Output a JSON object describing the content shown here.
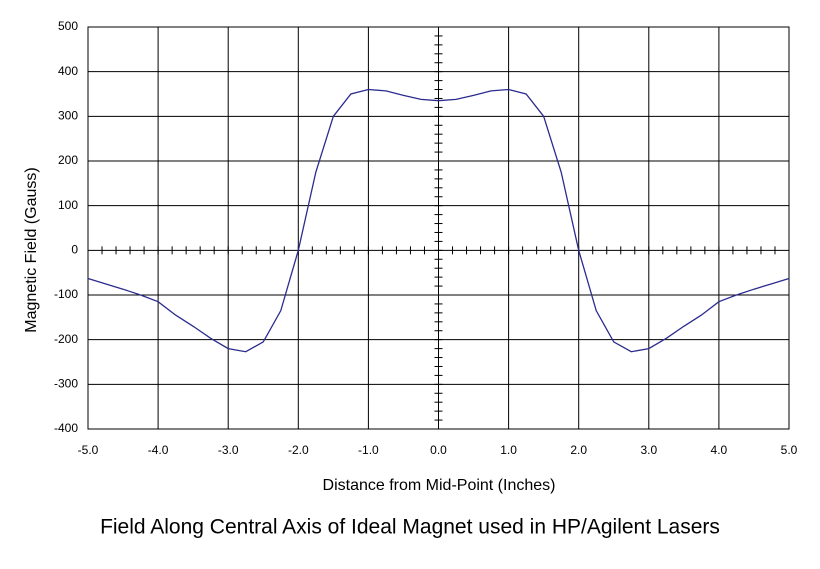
{
  "chart_data": {
    "type": "line",
    "title": "Field Along Central Axis of Ideal Magnet used in HP/Agilent Lasers",
    "x_label": "Distance from Mid-Point (Inches)",
    "y_label": "Magnetic Field (Gauss)",
    "x": [
      -5,
      -4.75,
      -4.5,
      -4.25,
      -4,
      -3.75,
      -3.5,
      -3.25,
      -3,
      -2.75,
      -2.5,
      -2.25,
      -2,
      -1.75,
      -1.5,
      -1.25,
      -1,
      -0.75,
      -0.5,
      -0.25,
      0,
      0.25,
      0.5,
      0.75,
      1,
      1.25,
      1.5,
      1.75,
      2,
      2.25,
      2.5,
      2.75,
      3,
      3.25,
      3.5,
      3.75,
      4,
      4.25,
      4.5,
      4.75,
      5
    ],
    "series": [
      {
        "color": "#2b2b8f",
        "values": [
          -63,
          -75,
          -87,
          -100,
          -115,
          -145,
          -170,
          -197,
          -220,
          -227,
          -205,
          -135,
          0,
          175,
          300,
          350,
          360,
          357,
          347,
          338,
          335,
          338,
          347,
          357,
          360,
          350,
          300,
          175,
          0,
          -135,
          -205,
          -227,
          -220,
          -197,
          -170,
          -145,
          -115,
          -100,
          -87,
          -75,
          -63
        ]
      }
    ],
    "xlim": [
      -5,
      5
    ],
    "xticks": [
      {
        "value": -5,
        "label": "-5.0"
      },
      {
        "value": -4,
        "label": "-4.0"
      },
      {
        "value": -3,
        "label": "-3.0"
      },
      {
        "value": -2,
        "label": "-2.0"
      },
      {
        "value": -1,
        "label": "-1.0"
      },
      {
        "value": 0,
        "label": "0.0"
      },
      {
        "value": 1,
        "label": "1.0"
      },
      {
        "value": 2,
        "label": "2.0"
      },
      {
        "value": 3,
        "label": "3.0"
      },
      {
        "value": 4,
        "label": "4.0"
      },
      {
        "value": 5,
        "label": "5.0"
      }
    ],
    "ylim": [
      -400,
      500
    ],
    "yticks": [
      -400,
      -300,
      -200,
      -100,
      0,
      100,
      200,
      300,
      400,
      500
    ],
    "grid": true
  }
}
